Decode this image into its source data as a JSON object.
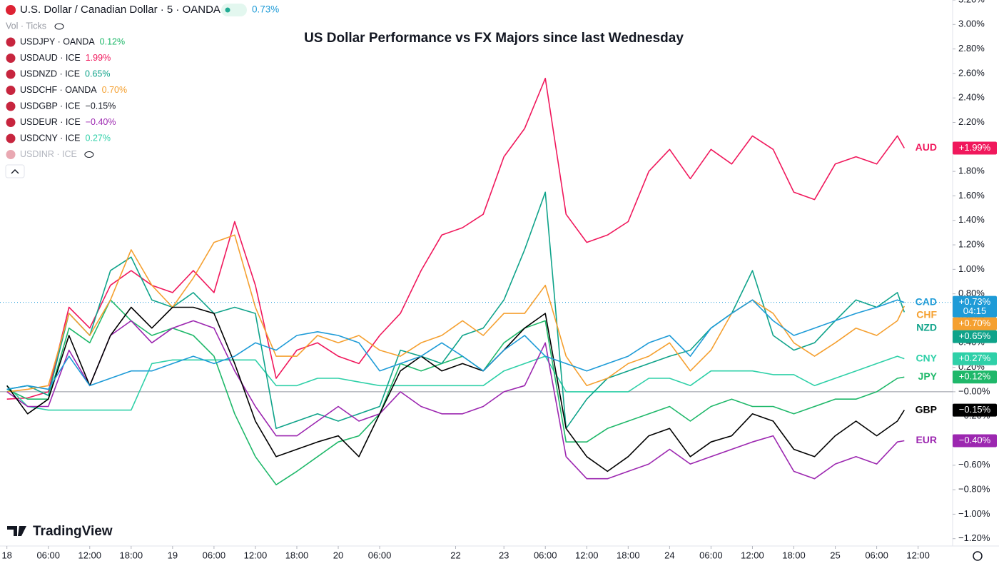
{
  "header": {
    "symbol_title": "U.S. Dollar / Canadian Dollar · 5 · OANDA",
    "change": "0.73%",
    "indicator": "Vol · Ticks",
    "brand": "TradingView"
  },
  "legend": [
    {
      "symbol": "USDJPY · OANDA",
      "value": "0.12%",
      "color": "#1fb86a"
    },
    {
      "symbol": "USDAUD · ICE",
      "value": "1.99%",
      "color": "#f0185c"
    },
    {
      "symbol": "USDNZD · ICE",
      "value": "0.65%",
      "color": "#0fa38a"
    },
    {
      "symbol": "USDCHF · OANDA",
      "value": "0.70%",
      "color": "#f5a030"
    },
    {
      "symbol": "USDGBP · ICE",
      "value": "−0.15%",
      "color": "#131722"
    },
    {
      "symbol": "USDEUR · ICE",
      "value": "−0.40%",
      "color": "#9c27b0"
    },
    {
      "symbol": "USDCNY · ICE",
      "value": "0.27%",
      "color": "#2fd0a8"
    },
    {
      "symbol": "USDINR · ICE",
      "color": "#b2b5be"
    }
  ],
  "chart_data": {
    "type": "line",
    "title": "US Dollar Performance vs FX Majors since last Wednesday",
    "x": [
      0,
      3,
      6,
      9,
      12,
      15,
      18,
      21,
      24,
      27,
      30,
      33,
      36,
      39,
      42,
      45,
      48,
      51,
      54,
      57,
      60,
      63,
      66,
      69,
      72,
      75,
      78,
      81,
      84,
      87,
      90,
      93,
      96,
      99,
      102,
      105,
      108,
      111,
      114,
      117,
      120,
      123,
      126,
      129,
      130
    ],
    "xlim": [
      -1,
      137
    ],
    "xticks": [
      {
        "value": 0,
        "label": "18"
      },
      {
        "value": 6,
        "label": "06:00"
      },
      {
        "value": 12,
        "label": "12:00"
      },
      {
        "value": 18,
        "label": "18:00"
      },
      {
        "value": 24,
        "label": "19"
      },
      {
        "value": 30,
        "label": "06:00"
      },
      {
        "value": 36,
        "label": "12:00"
      },
      {
        "value": 42,
        "label": "18:00"
      },
      {
        "value": 48,
        "label": "20"
      },
      {
        "value": 54,
        "label": "06:00"
      },
      {
        "value": 65,
        "label": "22"
      },
      {
        "value": 72,
        "label": "23"
      },
      {
        "value": 78,
        "label": "06:00"
      },
      {
        "value": 84,
        "label": "12:00"
      },
      {
        "value": 90,
        "label": "18:00"
      },
      {
        "value": 96,
        "label": "24"
      },
      {
        "value": 102,
        "label": "06:00"
      },
      {
        "value": 108,
        "label": "12:00"
      },
      {
        "value": 114,
        "label": "18:00"
      },
      {
        "value": 120,
        "label": "25"
      },
      {
        "value": 126,
        "label": "06:00"
      },
      {
        "value": 132,
        "label": "12:00"
      }
    ],
    "ylim": [
      -1.26,
      3.2
    ],
    "yticks": [
      {
        "value": 3.2,
        "label": "3.20%"
      },
      {
        "value": 3.0,
        "label": "3.00%"
      },
      {
        "value": 2.8,
        "label": "2.80%"
      },
      {
        "value": 2.6,
        "label": "2.60%"
      },
      {
        "value": 2.4,
        "label": "2.40%"
      },
      {
        "value": 2.2,
        "label": "2.20%"
      },
      {
        "value": 2.0,
        "label": "2.00%"
      },
      {
        "value": 1.8,
        "label": "1.80%"
      },
      {
        "value": 1.6,
        "label": "1.60%"
      },
      {
        "value": 1.4,
        "label": "1.40%"
      },
      {
        "value": 1.2,
        "label": "1.20%"
      },
      {
        "value": 1.0,
        "label": "1.00%"
      },
      {
        "value": 0.8,
        "label": "0.80%"
      },
      {
        "value": 0.6,
        "label": "0.60%"
      },
      {
        "value": 0.4,
        "label": "0.40%"
      },
      {
        "value": 0.2,
        "label": "0.20%"
      },
      {
        "value": 0,
        "label": "−0.00%"
      },
      {
        "value": -0.2,
        "label": "−0.20%"
      },
      {
        "value": -0.4,
        "label": "−0.40%"
      },
      {
        "value": -0.6,
        "label": "−0.60%"
      },
      {
        "value": -0.8,
        "label": "−0.80%"
      },
      {
        "value": -1.0,
        "label": "−1.00%"
      },
      {
        "value": -1.2,
        "label": "−1.20%"
      }
    ],
    "grid": false,
    "zero_line": true,
    "series": [
      {
        "name": "AUD",
        "color": "#f0185c",
        "badge": "+1.99%",
        "values": [
          -0.06,
          -0.05,
          0.0,
          0.69,
          0.52,
          0.87,
          0.99,
          0.87,
          0.81,
          0.99,
          0.81,
          1.39,
          0.87,
          0.11,
          0.34,
          0.4,
          0.29,
          0.23,
          0.46,
          0.64,
          0.99,
          1.28,
          1.34,
          1.45,
          1.92,
          2.15,
          2.56,
          1.45,
          1.22,
          1.28,
          1.39,
          1.8,
          1.98,
          1.74,
          1.98,
          1.86,
          2.09,
          1.98,
          1.63,
          1.57,
          1.86,
          1.92,
          1.86,
          2.09,
          1.99
        ]
      },
      {
        "name": "CNY",
        "color": "#2fd0a8",
        "badge": "+0.27%",
        "values": [
          0.05,
          -0.12,
          -0.15,
          -0.15,
          -0.15,
          -0.15,
          -0.15,
          0.23,
          0.26,
          0.26,
          0.26,
          0.26,
          0.26,
          0.05,
          0.05,
          0.11,
          0.11,
          0.08,
          0.05,
          0.05,
          0.05,
          0.05,
          0.05,
          0.05,
          0.17,
          0.23,
          0.29,
          0.0,
          0.0,
          0.0,
          0.0,
          0.11,
          0.11,
          0.05,
          0.17,
          0.17,
          0.17,
          0.14,
          0.14,
          0.05,
          0.11,
          0.17,
          0.23,
          0.29,
          0.27
        ]
      },
      {
        "name": "JPY",
        "color": "#1fb86a",
        "badge": "+0.12%",
        "values": [
          0.02,
          -0.06,
          -0.06,
          0.52,
          0.4,
          0.75,
          0.58,
          0.46,
          0.52,
          0.46,
          0.29,
          -0.18,
          -0.53,
          -0.76,
          -0.65,
          -0.53,
          -0.41,
          -0.36,
          -0.18,
          0.23,
          0.17,
          0.23,
          0.29,
          0.17,
          0.4,
          0.52,
          0.58,
          -0.41,
          -0.41,
          -0.3,
          -0.24,
          -0.18,
          -0.12,
          -0.24,
          -0.12,
          -0.06,
          -0.12,
          -0.12,
          -0.18,
          -0.12,
          -0.06,
          -0.06,
          0.0,
          0.11,
          0.12
        ]
      },
      {
        "name": "NZD",
        "color": "#0fa38a",
        "badge": "+0.65%",
        "values": [
          0.02,
          0.05,
          -0.03,
          0.64,
          0.46,
          0.99,
          1.1,
          0.75,
          0.69,
          0.81,
          0.64,
          0.69,
          0.64,
          -0.3,
          -0.24,
          -0.18,
          -0.24,
          -0.18,
          -0.12,
          0.34,
          0.29,
          0.23,
          0.46,
          0.52,
          0.75,
          1.16,
          1.63,
          -0.3,
          -0.06,
          0.11,
          0.17,
          0.23,
          0.29,
          0.34,
          0.52,
          0.64,
          0.99,
          0.46,
          0.34,
          0.4,
          0.58,
          0.75,
          0.69,
          0.81,
          0.65
        ]
      },
      {
        "name": "CHF",
        "color": "#f5a030",
        "badge": "+0.70%",
        "values": [
          0.0,
          0.02,
          0.05,
          0.64,
          0.46,
          0.75,
          1.16,
          0.87,
          0.69,
          0.93,
          1.22,
          1.28,
          0.69,
          0.29,
          0.29,
          0.46,
          0.4,
          0.46,
          0.34,
          0.29,
          0.4,
          0.46,
          0.58,
          0.46,
          0.64,
          0.64,
          0.87,
          0.29,
          0.05,
          0.11,
          0.23,
          0.29,
          0.4,
          0.17,
          0.34,
          0.64,
          0.75,
          0.64,
          0.4,
          0.29,
          0.4,
          0.52,
          0.46,
          0.58,
          0.7
        ]
      },
      {
        "name": "EUR",
        "color": "#9c27b0",
        "badge": "−0.40%",
        "values": [
          0.0,
          -0.12,
          -0.12,
          0.34,
          0.05,
          0.46,
          0.58,
          0.4,
          0.52,
          0.58,
          0.52,
          0.17,
          -0.12,
          -0.36,
          -0.36,
          -0.24,
          -0.12,
          -0.24,
          -0.18,
          0.0,
          -0.12,
          -0.18,
          -0.18,
          -0.12,
          0.0,
          0.05,
          0.4,
          -0.53,
          -0.71,
          -0.71,
          -0.65,
          -0.59,
          -0.47,
          -0.59,
          -0.53,
          -0.47,
          -0.41,
          -0.36,
          -0.65,
          -0.71,
          -0.59,
          -0.53,
          -0.59,
          -0.41,
          -0.4
        ]
      },
      {
        "name": "GBP",
        "color": "#000000",
        "badge": "−0.15%",
        "values": [
          0.05,
          -0.18,
          -0.06,
          0.46,
          0.05,
          0.46,
          0.69,
          0.52,
          0.69,
          0.69,
          0.64,
          0.23,
          -0.24,
          -0.53,
          -0.47,
          -0.41,
          -0.36,
          -0.53,
          -0.18,
          0.17,
          0.29,
          0.17,
          0.23,
          0.17,
          0.34,
          0.52,
          0.64,
          -0.3,
          -0.53,
          -0.65,
          -0.53,
          -0.36,
          -0.3,
          -0.53,
          -0.41,
          -0.36,
          -0.18,
          -0.24,
          -0.47,
          -0.53,
          -0.36,
          -0.24,
          -0.36,
          -0.24,
          -0.15
        ]
      },
      {
        "name": "CAD",
        "color": "#1e9bd7",
        "badge": "+0.73%",
        "badge_time": "04:15",
        "values": [
          0.02,
          0.05,
          0.02,
          0.29,
          0.05,
          0.11,
          0.17,
          0.17,
          0.23,
          0.29,
          0.23,
          0.29,
          0.4,
          0.34,
          0.46,
          0.49,
          0.46,
          0.4,
          0.17,
          0.23,
          0.29,
          0.4,
          0.29,
          0.17,
          0.34,
          0.46,
          0.29,
          0.23,
          0.17,
          0.23,
          0.29,
          0.4,
          0.46,
          0.29,
          0.52,
          0.64,
          0.75,
          0.58,
          0.46,
          0.52,
          0.58,
          0.64,
          0.69,
          0.75,
          0.73
        ]
      }
    ]
  }
}
